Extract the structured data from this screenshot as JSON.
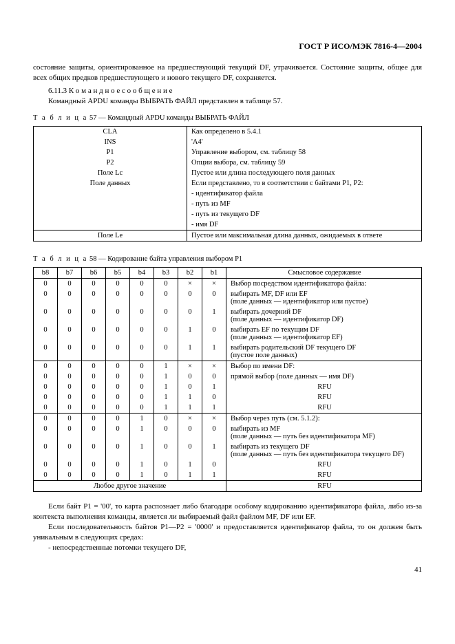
{
  "header": "ГОСТ Р ИСО/МЭК 7816-4—2004",
  "intro": {
    "p1": "состояние защиты, ориентированное на предшествующий текущий DF, утрачивается. Состояние защиты, общее для всех общих предков предшествующего и нового текущего DF, сохраняется.",
    "secnum": "6.11.3",
    "sectitle": "К о м а н д н о е   с о о б щ е н и е",
    "p2": "Командный APDU команды ВЫБРАТЬ ФАЙЛ представлен в таблице 57."
  },
  "table57": {
    "caption_prefix": "Т а б л и ц а",
    "caption_rest": "  57 — Командный APDU команды ВЫБРАТЬ ФАЙЛ",
    "rows": [
      {
        "l": "CLA",
        "r": "Как определено в 5.4.1"
      },
      {
        "l": "INS",
        "r": "'A4'"
      },
      {
        "l": "P1",
        "r": "Управление выбором, см. таблицу 58"
      },
      {
        "l": "P2",
        "r": "Опции выбора, см. таблицу 59"
      },
      {
        "l": "Поле Lc",
        "r": "Пустое или длина последующего поля данных"
      },
      {
        "l": "Поле данных",
        "r": "Если представлено, то в соответствии с байтами P1, P2:"
      },
      {
        "l": "",
        "r": "- идентификатор файла"
      },
      {
        "l": "",
        "r": "- путь из MF"
      },
      {
        "l": "",
        "r": "- путь из текущего DF"
      },
      {
        "l": "",
        "r": "- имя DF"
      },
      {
        "l": "Поле Le",
        "r": "Пустое или максимальная длина данных, ожидаемых в ответе"
      }
    ]
  },
  "table58": {
    "caption_prefix": "Т а б л и ц а",
    "caption_rest": "  58 — Кодирование байта управления выбором P1",
    "headers": [
      "b8",
      "b7",
      "b6",
      "b5",
      "b4",
      "b3",
      "b2",
      "b1",
      "Смысловое содержание"
    ],
    "rows": [
      {
        "b": [
          "0",
          "0",
          "0",
          "0",
          "0",
          "0",
          "×",
          "×"
        ],
        "d": "Выбор посредством идентификатора файла:",
        "sec": true
      },
      {
        "b": [
          "0",
          "0",
          "0",
          "0",
          "0",
          "0",
          "0",
          "0"
        ],
        "d": "выбирать MF, DF или EF\n(поле данных — идентификатор или пустое)"
      },
      {
        "b": [
          "0",
          "0",
          "0",
          "0",
          "0",
          "0",
          "0",
          "1"
        ],
        "d": "выбирать дочерний DF\n(поле данных — идентификатор DF)"
      },
      {
        "b": [
          "0",
          "0",
          "0",
          "0",
          "0",
          "0",
          "1",
          "0"
        ],
        "d": "выбирать EF по текущим DF\n(поле данных — идентификатор EF)"
      },
      {
        "b": [
          "0",
          "0",
          "0",
          "0",
          "0",
          "0",
          "1",
          "1"
        ],
        "d": "выбирать родительский DF текущего DF\n(пустое поле данных)"
      },
      {
        "b": [
          "0",
          "0",
          "0",
          "0",
          "0",
          "1",
          "×",
          "×"
        ],
        "d": "Выбор по имени DF:",
        "sec": true
      },
      {
        "b": [
          "0",
          "0",
          "0",
          "0",
          "0",
          "1",
          "0",
          "0"
        ],
        "d": "прямой выбор (поле данных — имя DF)"
      },
      {
        "b": [
          "0",
          "0",
          "0",
          "0",
          "0",
          "1",
          "0",
          "1"
        ],
        "d": "RFU",
        "c": true
      },
      {
        "b": [
          "0",
          "0",
          "0",
          "0",
          "0",
          "1",
          "1",
          "0"
        ],
        "d": "RFU",
        "c": true
      },
      {
        "b": [
          "0",
          "0",
          "0",
          "0",
          "0",
          "1",
          "1",
          "1"
        ],
        "d": "RFU",
        "c": true
      },
      {
        "b": [
          "0",
          "0",
          "0",
          "0",
          "1",
          "0",
          "×",
          "×"
        ],
        "d": "Выбор через путь (см. 5.1.2):",
        "sec": true
      },
      {
        "b": [
          "0",
          "0",
          "0",
          "0",
          "1",
          "0",
          "0",
          "0"
        ],
        "d": "выбирать из MF\n(поле данных — путь без идентификатора MF)"
      },
      {
        "b": [
          "0",
          "0",
          "0",
          "0",
          "1",
          "0",
          "0",
          "1"
        ],
        "d": "выбирать из текущего DF\n(поле данных — путь без идентификатора текущего DF)"
      },
      {
        "b": [
          "0",
          "0",
          "0",
          "0",
          "1",
          "0",
          "1",
          "0"
        ],
        "d": "RFU",
        "c": true
      },
      {
        "b": [
          "0",
          "0",
          "0",
          "0",
          "1",
          "0",
          "1",
          "1"
        ],
        "d": "RFU",
        "c": true
      }
    ],
    "footer_left": "Любое другое значение",
    "footer_right": "RFU"
  },
  "outro": {
    "p1": "Если байт P1 = '00', то карта распознает либо благодаря особому кодированию идентификатора файла, либо из-за контекста выполнения команды, является ли выбираемый файл файлом MF, DF или EF.",
    "p2": "Если последовательность байтов P1—P2 = '0000' и предоставляется идентификатор файла, то он должен быть уникальным в следующих средах:",
    "p3": "- непосредственные потомки текущего DF,"
  },
  "pagenum": "41"
}
